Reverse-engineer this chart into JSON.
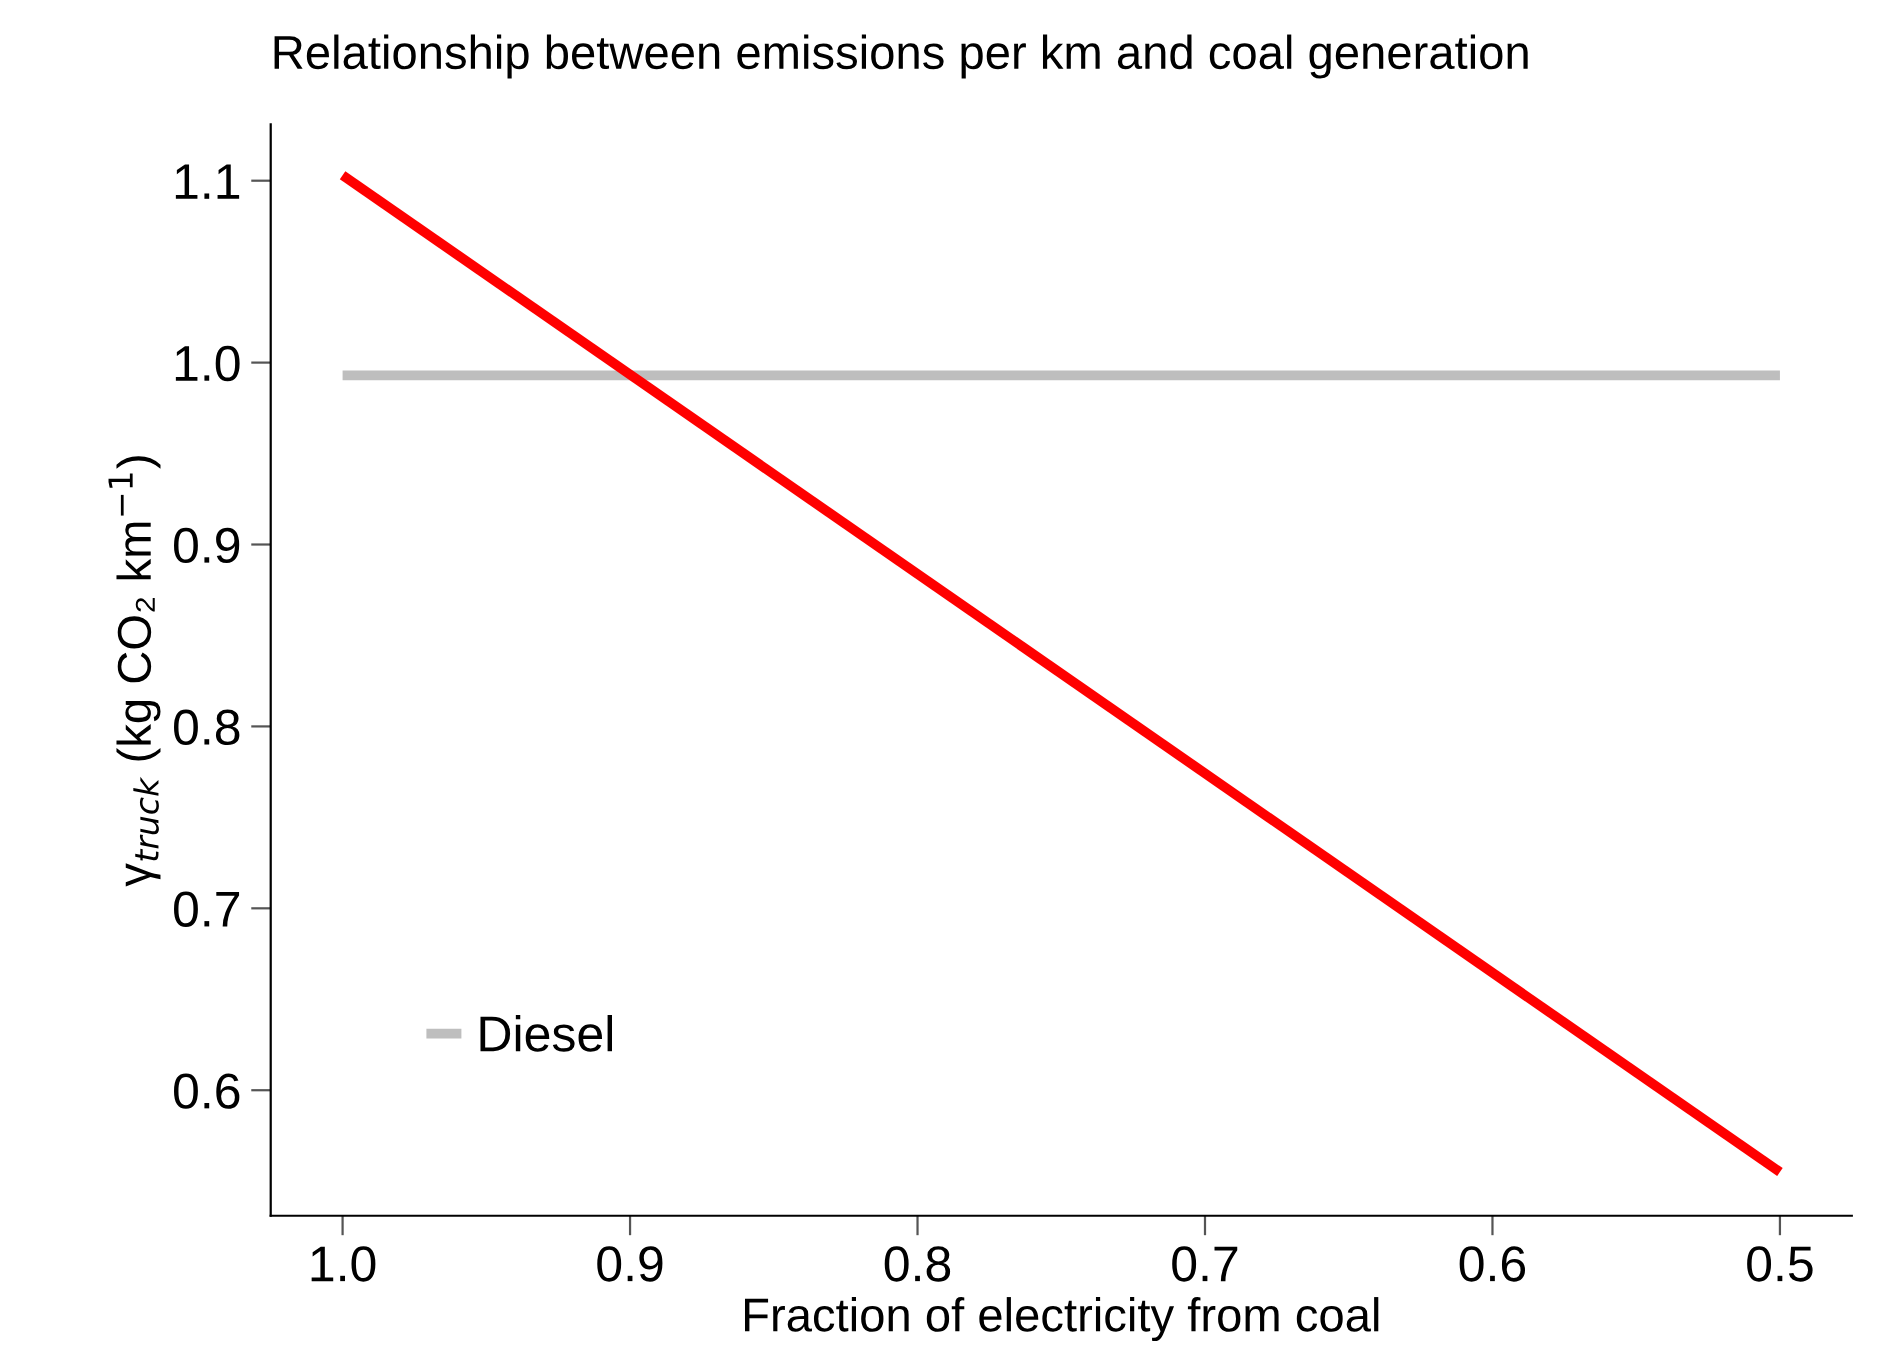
{
  "chart_data": {
    "type": "line",
    "title": "Relationship between emissions per km and coal generation",
    "xlabel": "Fraction of electricity from coal",
    "ylabel": "γ$_{truck}$ (kg CO₂ km$^{−1}$)",
    "x": [
      1.0,
      0.5
    ],
    "series": [
      {
        "name": "Diesel",
        "color": "#bebebe",
        "values": [
          0.993,
          0.993
        ]
      },
      {
        "color": "#ff0000",
        "values": [
          1.103,
          0.555
        ]
      }
    ],
    "xlim": [
      1.025,
      0.475
    ],
    "xticks": [
      {
        "value": 1,
        "label": "1.0"
      },
      0.9,
      0.8,
      0.7,
      0.6,
      0.5
    ],
    "ylim": [
      0.531,
      1.131
    ],
    "yticks": [
      0.6,
      0.7,
      0.8,
      0.9,
      {
        "value": 1,
        "label": "1.0"
      },
      1.1
    ],
    "grid": false,
    "legend": "bottom left",
    "marker": "none",
    "line_style": "solid"
  }
}
